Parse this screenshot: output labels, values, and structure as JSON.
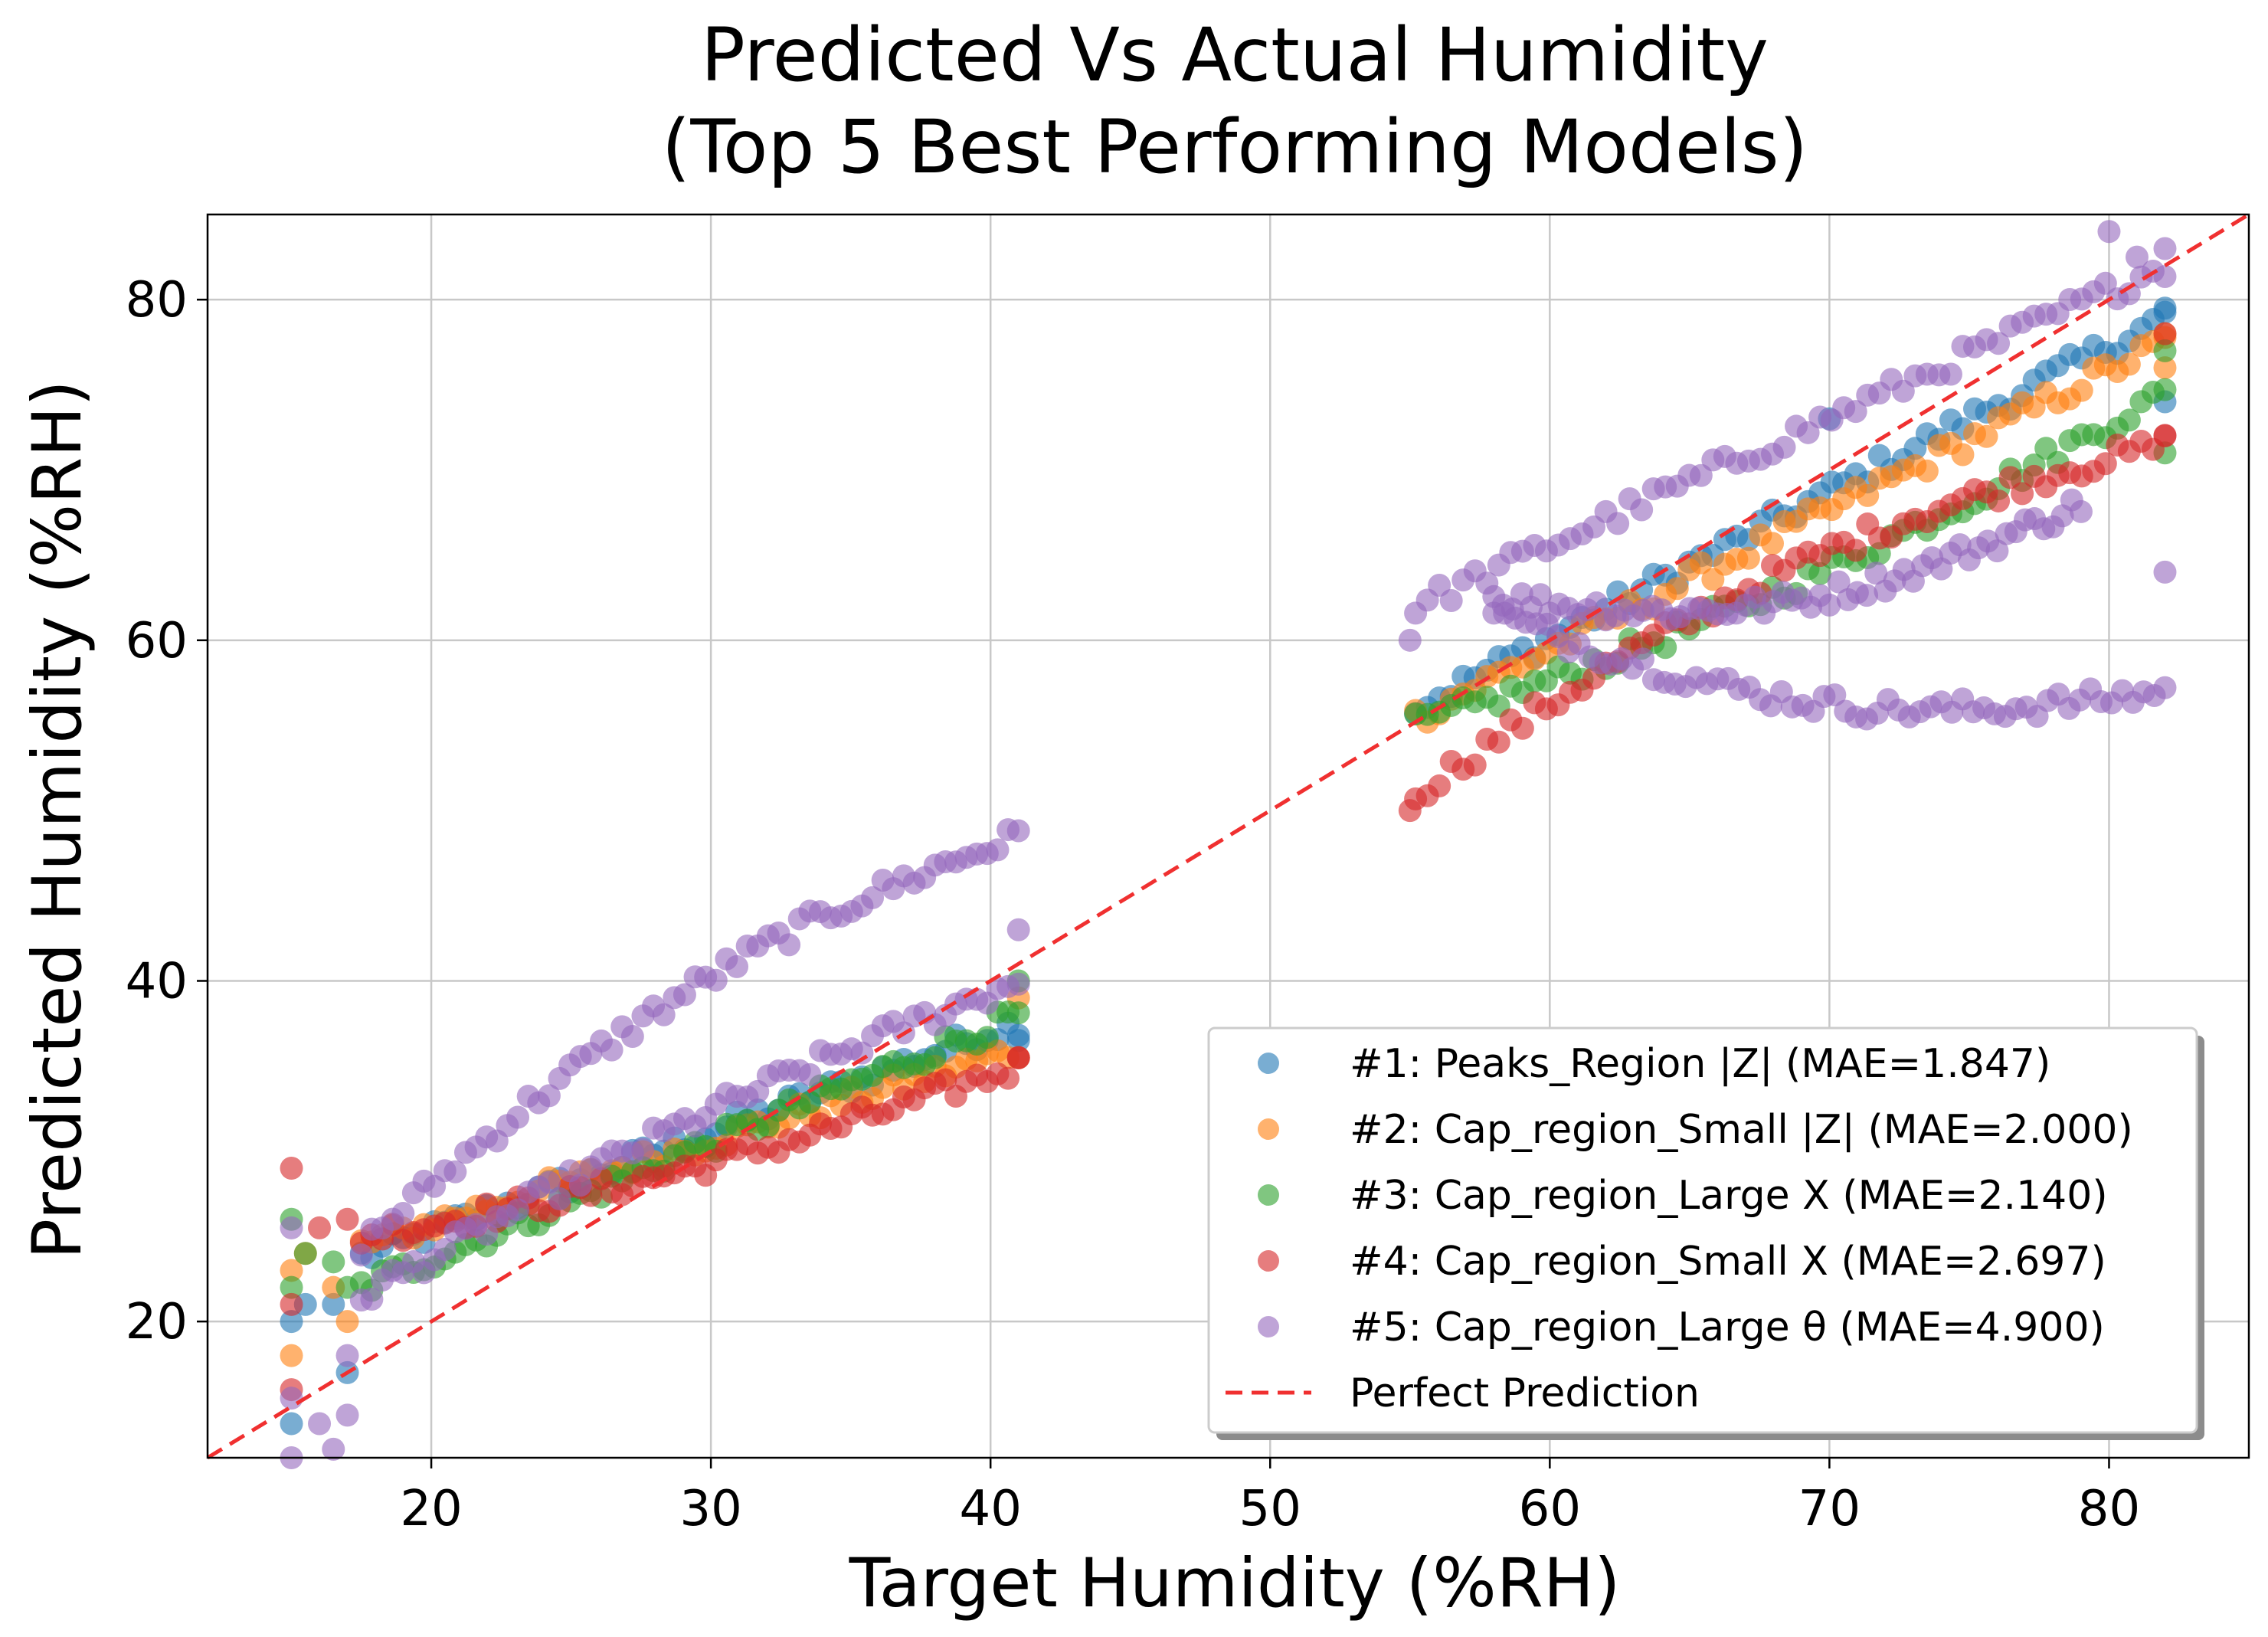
{
  "chart_data": {
    "type": "scatter",
    "title_line1": "Predicted Vs Actual Humidity",
    "title_line2": "(Top 5 Best Performing Models)",
    "xlabel": "Target Humidity (%RH)",
    "ylabel": "Predicted Humidity (%RH)",
    "xlim": [
      12,
      85
    ],
    "ylim": [
      12,
      85
    ],
    "xticks": [
      20,
      30,
      40,
      50,
      60,
      70,
      80
    ],
    "yticks": [
      20,
      40,
      60,
      80
    ],
    "grid": true,
    "legend_position": "lower-right",
    "reference_line": {
      "name": "Perfect Prediction",
      "color": "#f03030",
      "style": "dashed"
    },
    "series": [
      {
        "name": "#1: Peaks_Region |Z| (MAE=1.847)",
        "color": "#1f77b4",
        "segments": [
          {
            "x0": 17.5,
            "x1": 41,
            "y0": 23.8,
            "y1": 37.5,
            "curve": 0
          },
          {
            "x0": 55.2,
            "x1": 82,
            "y0": 56,
            "y1": 79,
            "curve": 0
          }
        ],
        "extra": [
          [
            15,
            14
          ],
          [
            15,
            20
          ],
          [
            15.5,
            21
          ],
          [
            16.5,
            21
          ],
          [
            17,
            17
          ],
          [
            70,
            73
          ],
          [
            82,
            74
          ],
          [
            82,
            79.5
          ],
          [
            41,
            36.5
          ]
        ]
      },
      {
        "name": "#2: Cap_region_Small |Z| (MAE=2.000)",
        "color": "#ff7f0e",
        "segments": [
          {
            "x0": 17.5,
            "x1": 41,
            "y0": 24.5,
            "y1": 36,
            "curve": 0
          },
          {
            "x0": 55.2,
            "x1": 82,
            "y0": 55.5,
            "y1": 77.5,
            "curve": 0
          }
        ],
        "extra": [
          [
            15,
            18
          ],
          [
            15,
            23
          ],
          [
            15.5,
            24
          ],
          [
            16.5,
            22
          ],
          [
            17,
            20
          ],
          [
            82,
            76
          ],
          [
            82,
            78
          ],
          [
            41,
            39
          ]
        ]
      },
      {
        "name": "#3: Cap_region_Large X (MAE=2.140)",
        "color": "#2ca02c",
        "segments": [
          {
            "x0": 17.5,
            "x1": 41,
            "y0": 22,
            "y1": 38,
            "curve": 0
          },
          {
            "x0": 55.2,
            "x1": 82,
            "y0": 55,
            "y1": 74.5,
            "curve": -1.5
          }
        ],
        "extra": [
          [
            15,
            26
          ],
          [
            15,
            22
          ],
          [
            15.5,
            24
          ],
          [
            16.5,
            23.5
          ],
          [
            17,
            22
          ],
          [
            82,
            71
          ],
          [
            82,
            77
          ],
          [
            41,
            40
          ]
        ]
      },
      {
        "name": "#4: Cap_region_Small X (MAE=2.697)",
        "color": "#d62728",
        "segments": [
          {
            "x0": 17.5,
            "x1": 41,
            "y0": 25,
            "y1": 35,
            "curve": -1
          },
          {
            "x0": 55.2,
            "x1": 82,
            "y0": 51,
            "y1": 71.5,
            "curve": 3
          }
        ],
        "extra": [
          [
            15,
            29
          ],
          [
            15,
            16
          ],
          [
            15,
            21
          ],
          [
            16,
            25.5
          ],
          [
            17,
            26
          ],
          [
            55,
            50
          ],
          [
            82,
            72
          ],
          [
            82,
            78
          ],
          [
            41,
            35.5
          ]
        ]
      },
      {
        "name": "#5: Cap_region_Large θ (MAE=4.900)",
        "color": "#9467bd",
        "segments": [
          {
            "x0": 17.5,
            "x1": 41,
            "y0": 24.5,
            "y1": 48.5,
            "curve": 3
          },
          {
            "x0": 17.5,
            "x1": 41,
            "y0": 21.5,
            "y1": 40,
            "curve": 1
          },
          {
            "x0": 55.2,
            "x1": 82,
            "y0": 62,
            "y1": 82,
            "curve": 0
          },
          {
            "x0": 58,
            "x1": 79,
            "y0": 62.5,
            "y1": 68,
            "curve": -3
          },
          {
            "x0": 58,
            "x1": 82,
            "y0": 61.5,
            "y1": 57,
            "curve": -3
          }
        ],
        "extra": [
          [
            15,
            12
          ],
          [
            15,
            15.5
          ],
          [
            15,
            25.5
          ],
          [
            16,
            14
          ],
          [
            16.5,
            12.5
          ],
          [
            17,
            14.5
          ],
          [
            17,
            18
          ],
          [
            80,
            84
          ],
          [
            81,
            82.5
          ],
          [
            82,
            83
          ],
          [
            82,
            64
          ],
          [
            55,
            60
          ],
          [
            41,
            43
          ]
        ]
      }
    ]
  }
}
